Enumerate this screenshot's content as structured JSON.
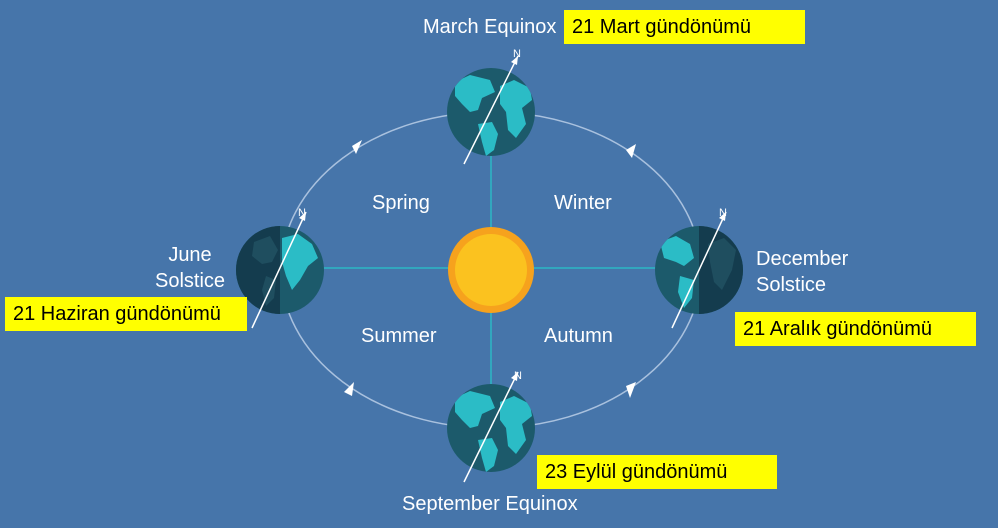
{
  "labels": {
    "march": "March Equinox",
    "june_line1": "June",
    "june_line2": "Solstice",
    "december_line1": "December",
    "december_line2": "Solstice",
    "september": "September Equinox",
    "spring": "Spring",
    "winter": "Winter",
    "summer": "Summer",
    "autumn": "Autumn",
    "north": "N"
  },
  "highlights": {
    "march": "21 Mart gündönümü",
    "june": "21 Haziran gündönümü",
    "december": "21 Aralık gündönümü",
    "september": "23 Eylül gündönümü"
  },
  "colors": {
    "background": "#4675aa",
    "orbit": "#a9c1de",
    "axis_lines": "#2bb8c4",
    "sun_outer": "#f6a21d",
    "sun_inner": "#fbc21f",
    "earth_ocean": "#1c5a6b",
    "earth_land": "#2bbcc6",
    "earth_night": "#143c4e",
    "highlight": "#ffff00"
  }
}
